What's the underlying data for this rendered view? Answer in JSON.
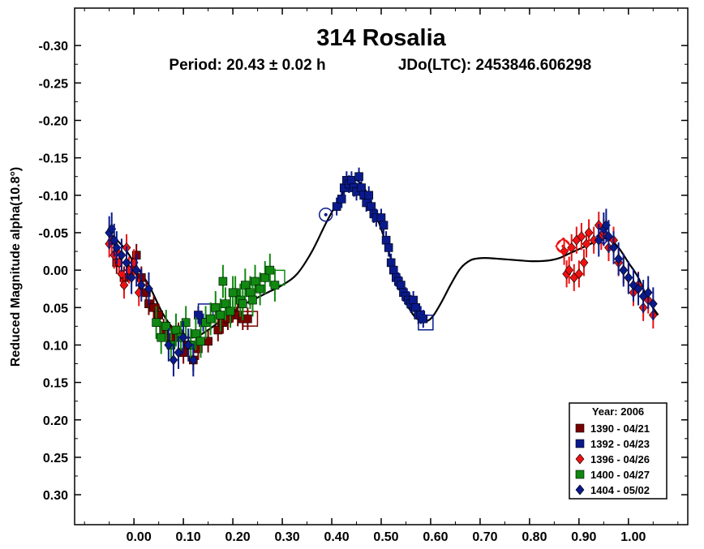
{
  "chart_data": {
    "type": "scatter",
    "title": "314 Rosalia",
    "subtitle_period": "Period: 20.43 ± 0.02 h",
    "subtitle_epoch": "JDo(LTC): 2453846.606298",
    "ylabel": "Reduced Magnitude alpha(10.8°)",
    "xlabel": "",
    "xlim": [
      -0.12,
      1.12
    ],
    "ylim": [
      -0.35,
      0.34
    ],
    "y_inverted": true,
    "x_ticks": [
      "0.00",
      "0.10",
      "0.20",
      "0.30",
      "0.40",
      "0.50",
      "0.60",
      "0.70",
      "0.80",
      "0.90",
      "1.00"
    ],
    "x_tick_values": [
      0,
      0.1,
      0.2,
      0.3,
      0.4,
      0.5,
      0.6,
      0.7,
      0.8,
      0.9,
      1.0
    ],
    "y_ticks": [
      "-0.30",
      "-0.25",
      "-0.20",
      "-0.15",
      "-0.10",
      "-0.05",
      "0.00",
      "0.05",
      "0.10",
      "0.15",
      "0.20",
      "0.25",
      "0.30"
    ],
    "y_tick_values": [
      -0.3,
      -0.25,
      -0.2,
      -0.15,
      -0.1,
      -0.05,
      0.0,
      0.05,
      0.1,
      0.15,
      0.2,
      0.25,
      0.3
    ],
    "grid": false,
    "legend": {
      "placement": "bottom-right",
      "title": "Year: 2006"
    },
    "fit_curve": {
      "x": [
        -0.05,
        -0.02,
        0.0,
        0.03,
        0.06,
        0.09,
        0.12,
        0.15,
        0.18,
        0.21,
        0.24,
        0.27,
        0.3,
        0.33,
        0.36,
        0.39,
        0.42,
        0.44,
        0.46,
        0.48,
        0.5,
        0.52,
        0.54,
        0.56,
        0.58,
        0.6,
        0.62,
        0.64,
        0.66,
        0.68,
        0.7,
        0.72,
        0.74,
        0.76,
        0.78,
        0.8,
        0.82,
        0.84,
        0.86,
        0.88,
        0.9,
        0.92,
        0.94,
        0.96,
        0.98,
        1.0,
        1.02,
        1.04,
        1.06
      ],
      "y": [
        -0.05,
        -0.03,
        -0.01,
        0.02,
        0.06,
        0.085,
        0.09,
        0.08,
        0.065,
        0.05,
        0.04,
        0.03,
        0.02,
        0.005,
        -0.025,
        -0.065,
        -0.1,
        -0.12,
        -0.115,
        -0.09,
        -0.055,
        -0.015,
        0.025,
        0.055,
        0.068,
        0.065,
        0.045,
        0.02,
        -0.002,
        -0.013,
        -0.016,
        -0.016,
        -0.015,
        -0.014,
        -0.013,
        -0.012,
        -0.012,
        -0.013,
        -0.016,
        -0.022,
        -0.028,
        -0.034,
        -0.04,
        -0.042,
        -0.03,
        -0.01,
        0.01,
        0.04,
        0.06
      ]
    },
    "series": [
      {
        "name": "1390 - 04/21",
        "marker": "square",
        "color": "#7a0000",
        "x": [
          -0.035,
          -0.02,
          -0.005,
          0.005,
          0.015,
          0.025,
          0.03,
          0.04,
          0.05,
          0.06,
          0.075,
          0.09,
          0.1,
          0.11,
          0.12,
          0.13,
          0.15,
          0.17,
          0.18,
          0.19,
          0.2,
          0.21,
          0.22,
          0.23
        ],
        "y": [
          -0.01,
          0.01,
          0.0,
          -0.02,
          0.01,
          0.03,
          0.045,
          0.05,
          0.06,
          0.08,
          0.09,
          0.085,
          0.11,
          0.1,
          0.12,
          0.105,
          0.095,
          0.08,
          0.07,
          0.065,
          0.055,
          0.06,
          0.065,
          0.065
        ],
        "err": 0.015,
        "hollow_x": [
          0.235
        ],
        "hollow_y": [
          0.065
        ]
      },
      {
        "name": "1392 - 04/23",
        "marker": "square",
        "color": "#0a1a8c",
        "x": [
          0.41,
          0.42,
          0.425,
          0.43,
          0.435,
          0.44,
          0.445,
          0.45,
          0.455,
          0.46,
          0.465,
          0.47,
          0.475,
          0.48,
          0.485,
          0.49,
          0.5,
          0.505,
          0.51,
          0.515,
          0.52,
          0.525,
          0.53,
          0.535,
          0.54,
          0.545,
          0.55,
          0.555,
          0.56,
          0.565,
          0.57,
          0.575,
          0.58,
          0.585,
          0.13,
          0.14
        ],
        "y": [
          -0.085,
          -0.095,
          -0.11,
          -0.12,
          -0.115,
          -0.12,
          -0.11,
          -0.105,
          -0.125,
          -0.11,
          -0.1,
          -0.09,
          -0.1,
          -0.085,
          -0.075,
          -0.07,
          -0.07,
          -0.06,
          -0.04,
          -0.03,
          -0.01,
          0.0,
          0.01,
          0.015,
          0.02,
          0.03,
          0.035,
          0.04,
          0.045,
          0.04,
          0.05,
          0.06,
          0.06,
          0.065,
          0.06,
          0.07
        ],
        "err": 0.012,
        "hollow_x": [
          0.59,
          0.145
        ],
        "hollow_y": [
          0.07,
          0.055
        ]
      },
      {
        "name": "1396 - 04/26",
        "marker": "diamond",
        "color": "#ee1111",
        "x": [
          -0.05,
          -0.045,
          -0.04,
          -0.035,
          -0.03,
          -0.025,
          -0.02,
          -0.015,
          -0.01,
          0.0,
          0.01,
          0.87,
          0.875,
          0.88,
          0.885,
          0.89,
          0.895,
          0.9,
          0.905,
          0.91,
          0.915,
          0.92,
          0.93,
          0.94,
          0.945,
          0.95,
          0.96,
          0.97,
          0.98,
          0.99,
          1.0,
          1.01,
          1.02,
          1.03,
          1.04,
          1.05
        ],
        "y": [
          -0.035,
          -0.04,
          -0.02,
          -0.025,
          -0.01,
          0.005,
          0.02,
          -0.03,
          0.0,
          -0.01,
          0.03,
          -0.025,
          0.005,
          0.0,
          -0.03,
          0.01,
          -0.04,
          0.005,
          -0.045,
          -0.01,
          -0.035,
          -0.05,
          -0.04,
          -0.06,
          -0.045,
          -0.05,
          -0.03,
          -0.04,
          -0.01,
          0.0,
          0.01,
          0.03,
          0.02,
          0.05,
          0.04,
          0.06
        ],
        "err": 0.018,
        "hollow_x": [
          0.868
        ],
        "hollow_y": [
          -0.032
        ]
      },
      {
        "name": "1400 - 04/27",
        "marker": "square",
        "color": "#118811",
        "x": [
          0.045,
          0.055,
          0.065,
          0.075,
          0.085,
          0.095,
          0.105,
          0.115,
          0.125,
          0.135,
          0.145,
          0.155,
          0.165,
          0.175,
          0.185,
          0.195,
          0.205,
          0.215,
          0.225,
          0.235,
          0.245,
          0.255,
          0.265,
          0.275,
          0.285,
          0.18,
          0.2,
          0.22,
          0.24
        ],
        "y": [
          0.07,
          0.09,
          0.075,
          0.1,
          0.08,
          0.09,
          0.07,
          0.1,
          0.085,
          0.095,
          0.07,
          0.065,
          0.05,
          0.06,
          0.045,
          0.055,
          0.03,
          0.04,
          0.02,
          0.03,
          0.015,
          0.025,
          0.01,
          0.0,
          0.02,
          0.015,
          0.03,
          0.045,
          0.04
        ],
        "err": 0.022,
        "hollow_x": [
          0.29
        ],
        "hollow_y": [
          0.01
        ]
      },
      {
        "name": "1404 - 05/02",
        "marker": "diamond",
        "color": "#0a1a8c",
        "x": [
          -0.05,
          -0.045,
          -0.04,
          -0.035,
          -0.025,
          -0.015,
          -0.005,
          0.005,
          0.015,
          0.03,
          0.07,
          0.08,
          0.09,
          0.1,
          0.11,
          0.12,
          0.94,
          0.95,
          0.955,
          0.96,
          0.97,
          0.98,
          0.99,
          1.0,
          1.01,
          1.02,
          1.03,
          1.04,
          1.05
        ],
        "y": [
          -0.05,
          -0.055,
          -0.04,
          -0.03,
          -0.02,
          -0.01,
          0.01,
          0.0,
          0.02,
          0.025,
          0.1,
          0.12,
          0.11,
          0.09,
          0.1,
          0.12,
          -0.04,
          -0.055,
          -0.06,
          -0.045,
          -0.03,
          -0.015,
          0.0,
          0.01,
          0.02,
          0.025,
          0.035,
          0.03,
          0.045
        ],
        "err": 0.022,
        "hollow_x": [
          0.95
        ],
        "hollow_y": [
          -0.045
        ]
      }
    ],
    "hollow_circles": [
      {
        "x": 0.388,
        "y": -0.074,
        "color": "#0a1a8c"
      },
      {
        "x": 0.868,
        "y": -0.032,
        "color": "#ee1111"
      }
    ]
  }
}
